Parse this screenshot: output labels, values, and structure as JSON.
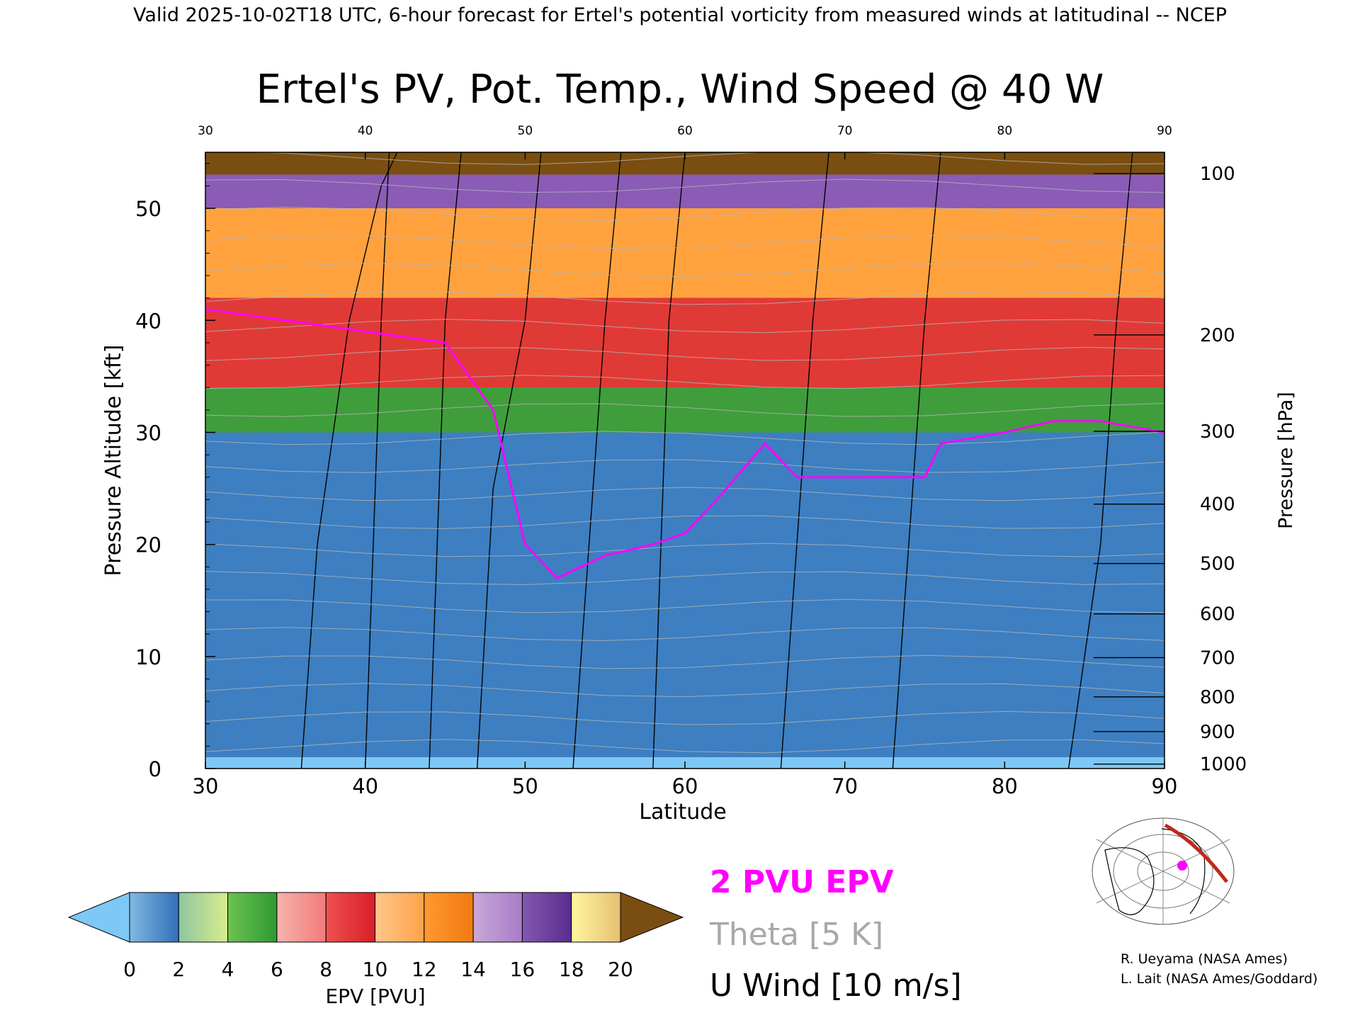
{
  "header": "Valid 2025-10-02T18 UTC, 6-hour forecast for Ertel's potential vorticity from measured winds at latitudinal -- NCEP",
  "chart_data": {
    "type": "heatmap",
    "title": "Ertel's PV, Pot. Temp., Wind Speed @ 40 W",
    "xlabel": "Latitude",
    "ylabel": "Pressure Altitude [kft]",
    "y2label": "Pressure [hPa]",
    "xlim": [
      30,
      90
    ],
    "ylim": [
      0,
      55
    ],
    "x_ticks": [
      "30",
      "40",
      "50",
      "60",
      "70",
      "80",
      "90"
    ],
    "top_ticks": [
      "30",
      "40",
      "50",
      "60",
      "70",
      "80",
      "90"
    ],
    "y_ticks": [
      "0",
      "10",
      "20",
      "30",
      "40",
      "50"
    ],
    "pressure_ticks": [
      {
        "label": "1000",
        "kft": 0.4
      },
      {
        "label": "900",
        "kft": 3.3
      },
      {
        "label": "800",
        "kft": 6.4
      },
      {
        "label": "700",
        "kft": 9.9
      },
      {
        "label": "600",
        "kft": 13.8
      },
      {
        "label": "500",
        "kft": 18.3
      },
      {
        "label": "400",
        "kft": 23.6
      },
      {
        "label": "300",
        "kft": 30.1
      },
      {
        "label": "200",
        "kft": 38.7
      },
      {
        "label": "100",
        "kft": 53.1
      }
    ],
    "colorbar": {
      "label": "EPV [PVU]",
      "tick_labels": [
        "0",
        "2",
        "4",
        "6",
        "8",
        "10",
        "12",
        "14",
        "16",
        "18",
        "20"
      ],
      "under_color": "#7ec8f5",
      "over_color": "#7a4e10",
      "bands": [
        [
          "#83b8e4",
          "#2f6fb8"
        ],
        [
          "#8ec6a0",
          "#d9ec8c"
        ],
        [
          "#6cc250",
          "#2f9a32"
        ],
        [
          "#f6b3ae",
          "#f27a7a"
        ],
        [
          "#f05050",
          "#d71f27"
        ],
        [
          "#ffc68a",
          "#ffa24a"
        ],
        [
          "#ff9a30",
          "#f07a10"
        ],
        [
          "#c8a8d8",
          "#a87cc8"
        ],
        [
          "#8458b0",
          "#5a2c8e"
        ],
        [
          "#fff6a0",
          "#e6c070"
        ]
      ]
    },
    "field_levels": [
      {
        "top_kft": 1,
        "color": "#7ec8f5"
      },
      {
        "top_kft": 30,
        "color": "#3d7fc1"
      },
      {
        "top_kft": 34,
        "color": "#3f9d3c"
      },
      {
        "top_kft": 42,
        "color": "#e03a36"
      },
      {
        "top_kft": 50,
        "color": "#ffa23e"
      },
      {
        "top_kft": 53,
        "color": "#8a5cb5"
      },
      {
        "top_kft": 55,
        "color": "#7a4e10"
      }
    ],
    "tropopause_2pvu": {
      "lat": [
        30,
        35,
        40,
        45,
        48,
        50,
        52,
        55,
        58,
        60,
        62,
        65,
        67,
        70,
        75,
        76,
        80,
        83,
        86,
        90
      ],
      "kft": [
        41,
        40,
        39,
        38,
        32,
        20,
        17,
        19,
        20,
        21,
        24,
        29,
        26,
        26,
        26,
        29,
        30,
        31,
        31,
        30
      ]
    },
    "u_wind_contours": [
      {
        "lat": [
          36,
          37,
          39,
          41,
          42
        ],
        "kft": [
          0,
          20,
          40,
          52,
          55
        ]
      },
      {
        "lat": [
          40,
          40.5,
          41,
          41.5
        ],
        "kft": [
          0,
          20,
          40,
          55
        ]
      },
      {
        "lat": [
          44,
          44.5,
          45,
          46
        ],
        "kft": [
          0,
          20,
          40,
          55
        ]
      },
      {
        "lat": [
          47,
          48,
          50,
          51
        ],
        "kft": [
          0,
          25,
          40,
          55
        ]
      },
      {
        "lat": [
          53,
          54,
          55,
          56
        ],
        "kft": [
          0,
          20,
          40,
          55
        ]
      },
      {
        "lat": [
          58,
          58.5,
          59,
          60
        ],
        "kft": [
          0,
          20,
          40,
          55
        ]
      },
      {
        "lat": [
          66,
          67,
          68,
          69
        ],
        "kft": [
          0,
          20,
          40,
          55
        ]
      },
      {
        "lat": [
          73,
          74,
          75,
          76
        ],
        "kft": [
          0,
          20,
          40,
          55
        ]
      },
      {
        "lat": [
          84,
          86,
          87,
          88
        ],
        "kft": [
          0,
          20,
          40,
          55
        ]
      }
    ],
    "legend_items": [
      "2 PVU EPV",
      "Theta [5 K]",
      "U Wind [10 m/s]"
    ],
    "legend_colors": [
      "#ff00ff",
      "#a8a8a8",
      "#000000"
    ]
  },
  "credits": [
    "R. Ueyama (NASA Ames)",
    "L. Lait (NASA Ames/Goddard)"
  ]
}
